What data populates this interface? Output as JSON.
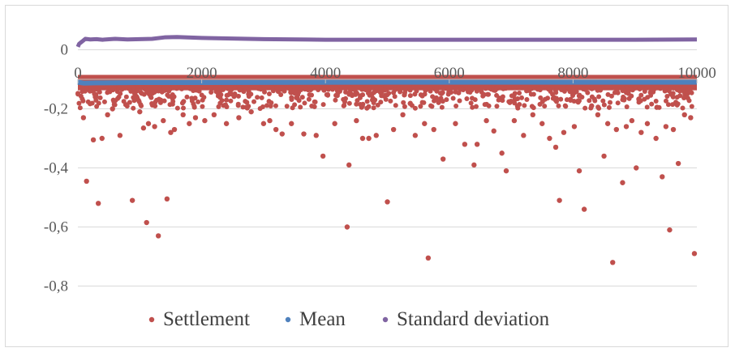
{
  "chart_data": {
    "type": "scatter",
    "title": "",
    "xlabel": "",
    "ylabel": "",
    "xlim": [
      0,
      10000
    ],
    "ylim": [
      -0.9,
      0.1
    ],
    "x_ticks": [
      0,
      2000,
      4000,
      6000,
      8000,
      10000
    ],
    "x_tick_labels": [
      "0",
      "2000",
      "4000",
      "6000",
      "8000",
      "10000"
    ],
    "y_ticks": [
      0,
      -0.2,
      -0.4,
      -0.6,
      -0.8
    ],
    "y_tick_labels": [
      "0",
      "-0,2",
      "-0,4",
      "-0,6",
      "-0,8"
    ],
    "grid": "horizontal",
    "legend_position": "bottom",
    "series": [
      {
        "name": "Settlement",
        "color": "#c0504d",
        "note_band": {
          "x_range": [
            0,
            10000
          ],
          "y_range": [
            -0.18,
            -0.085
          ]
        },
        "points": [
          [
            90,
            -0.23
          ],
          [
            140,
            -0.445
          ],
          [
            250,
            -0.305
          ],
          [
            330,
            -0.52
          ],
          [
            390,
            -0.3
          ],
          [
            480,
            -0.22
          ],
          [
            560,
            -0.2
          ],
          [
            680,
            -0.29
          ],
          [
            880,
            -0.51
          ],
          [
            1000,
            -0.21
          ],
          [
            1060,
            -0.265
          ],
          [
            1110,
            -0.585
          ],
          [
            1140,
            -0.25
          ],
          [
            1240,
            -0.26
          ],
          [
            1300,
            -0.63
          ],
          [
            1380,
            -0.24
          ],
          [
            1440,
            -0.505
          ],
          [
            1500,
            -0.28
          ],
          [
            1560,
            -0.27
          ],
          [
            1700,
            -0.22
          ],
          [
            1800,
            -0.25
          ],
          [
            1900,
            -0.23
          ],
          [
            2050,
            -0.24
          ],
          [
            2200,
            -0.22
          ],
          [
            2400,
            -0.25
          ],
          [
            2600,
            -0.23
          ],
          [
            2800,
            -0.21
          ],
          [
            3000,
            -0.25
          ],
          [
            3100,
            -0.24
          ],
          [
            3200,
            -0.27
          ],
          [
            3300,
            -0.285
          ],
          [
            3450,
            -0.25
          ],
          [
            3650,
            -0.285
          ],
          [
            3850,
            -0.29
          ],
          [
            3960,
            -0.36
          ],
          [
            4150,
            -0.25
          ],
          [
            4380,
            -0.39
          ],
          [
            4350,
            -0.6
          ],
          [
            4500,
            -0.24
          ],
          [
            4600,
            -0.3
          ],
          [
            4700,
            -0.3
          ],
          [
            4820,
            -0.29
          ],
          [
            5000,
            -0.515
          ],
          [
            5100,
            -0.27
          ],
          [
            5250,
            -0.22
          ],
          [
            5450,
            -0.29
          ],
          [
            5600,
            -0.25
          ],
          [
            5660,
            -0.705
          ],
          [
            5750,
            -0.27
          ],
          [
            5900,
            -0.37
          ],
          [
            6100,
            -0.25
          ],
          [
            6250,
            -0.32
          ],
          [
            6400,
            -0.39
          ],
          [
            6450,
            -0.32
          ],
          [
            6600,
            -0.24
          ],
          [
            6720,
            -0.275
          ],
          [
            6850,
            -0.35
          ],
          [
            6920,
            -0.41
          ],
          [
            7050,
            -0.24
          ],
          [
            7200,
            -0.29
          ],
          [
            7350,
            -0.22
          ],
          [
            7500,
            -0.25
          ],
          [
            7620,
            -0.3
          ],
          [
            7720,
            -0.33
          ],
          [
            7780,
            -0.51
          ],
          [
            7850,
            -0.28
          ],
          [
            8020,
            -0.26
          ],
          [
            8100,
            -0.41
          ],
          [
            8180,
            -0.54
          ],
          [
            8300,
            -0.19
          ],
          [
            8400,
            -0.22
          ],
          [
            8500,
            -0.36
          ],
          [
            8560,
            -0.25
          ],
          [
            8640,
            -0.72
          ],
          [
            8700,
            -0.27
          ],
          [
            8800,
            -0.45
          ],
          [
            8860,
            -0.26
          ],
          [
            8950,
            -0.24
          ],
          [
            9020,
            -0.4
          ],
          [
            9100,
            -0.28
          ],
          [
            9200,
            -0.25
          ],
          [
            9340,
            -0.3
          ],
          [
            9440,
            -0.43
          ],
          [
            9500,
            -0.26
          ],
          [
            9560,
            -0.61
          ],
          [
            9620,
            -0.27
          ],
          [
            9700,
            -0.385
          ],
          [
            9800,
            -0.22
          ],
          [
            9900,
            -0.23
          ],
          [
            9960,
            -0.69
          ]
        ]
      },
      {
        "name": "Mean",
        "color": "#4f81bd",
        "points": [
          [
            0,
            -0.11
          ],
          [
            100,
            -0.113
          ],
          [
            300,
            -0.112
          ],
          [
            1000,
            -0.111
          ],
          [
            2000,
            -0.111
          ],
          [
            5000,
            -0.11
          ],
          [
            10000,
            -0.11
          ]
        ]
      },
      {
        "name": "Standard deviation",
        "color": "#8064a2",
        "points": [
          [
            0,
            0.01
          ],
          [
            20,
            0.02
          ],
          [
            50,
            0.025
          ],
          [
            80,
            0.03
          ],
          [
            120,
            0.037
          ],
          [
            200,
            0.035
          ],
          [
            300,
            0.036
          ],
          [
            400,
            0.034
          ],
          [
            600,
            0.037
          ],
          [
            800,
            0.035
          ],
          [
            1000,
            0.036
          ],
          [
            1200,
            0.037
          ],
          [
            1400,
            0.042
          ],
          [
            1600,
            0.043
          ],
          [
            2000,
            0.04
          ],
          [
            3000,
            0.036
          ],
          [
            4000,
            0.034
          ],
          [
            5000,
            0.034
          ],
          [
            6000,
            0.034
          ],
          [
            7000,
            0.034
          ],
          [
            8000,
            0.034
          ],
          [
            9000,
            0.034
          ],
          [
            10000,
            0.035
          ]
        ]
      }
    ]
  }
}
